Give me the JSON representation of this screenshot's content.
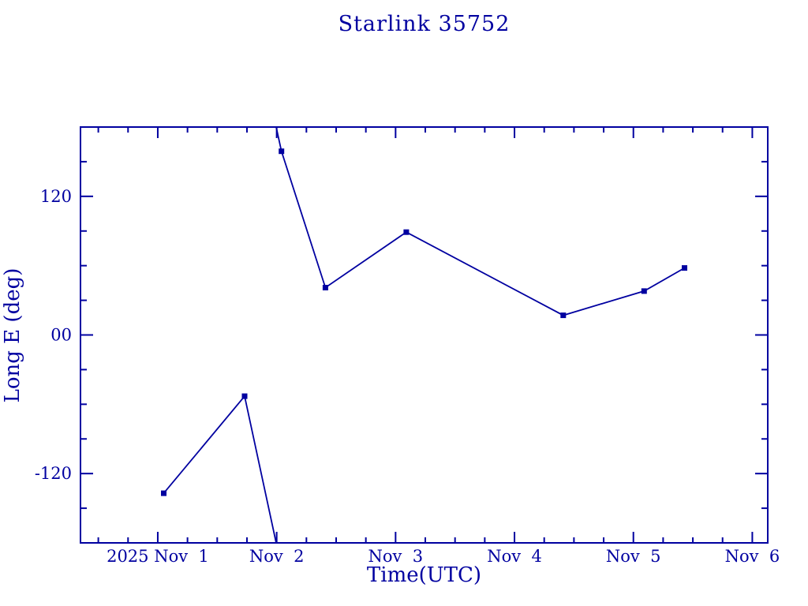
{
  "chart_data": {
    "type": "line",
    "title": "Starlink 35752",
    "xlabel": "Time(UTC)",
    "ylabel": "Long E (deg)",
    "accent_color": "#0000A0",
    "background_color": "#FFFFFF",
    "grid": false,
    "legend": "none",
    "x_axis": {
      "unit": "days since 2025-11-01 00:00 UTC",
      "range": [
        -0.65,
        5.13
      ],
      "major_ticks": [
        0,
        1,
        2,
        3,
        4,
        5
      ],
      "major_tick_labels": [
        "2025 Nov  1",
        "Nov  2",
        "Nov  3",
        "Nov  4",
        "Nov  5",
        "Nov  6"
      ],
      "minor_tick_interval": 0.25
    },
    "y_axis": {
      "range": [
        -180,
        180
      ],
      "major_ticks": [
        120,
        0,
        -120
      ],
      "major_tick_labels": [
        "120",
        "00",
        "-120"
      ],
      "minor_tick_interval": 30
    },
    "series": [
      {
        "name": "Long E (deg)",
        "marker": "filled-square",
        "wrap_at": 180,
        "points": [
          {
            "x_day": 0.05,
            "lon_deg": -137
          },
          {
            "x_day": 0.73,
            "lon_deg": -53
          },
          {
            "x_day": 1.04,
            "lon_deg": 159
          },
          {
            "x_day": 1.41,
            "lon_deg": 41
          },
          {
            "x_day": 2.09,
            "lon_deg": 89
          },
          {
            "x_day": 3.41,
            "lon_deg": 17
          },
          {
            "x_day": 4.09,
            "lon_deg": 38
          },
          {
            "x_day": 4.43,
            "lon_deg": 58
          }
        ]
      }
    ]
  }
}
